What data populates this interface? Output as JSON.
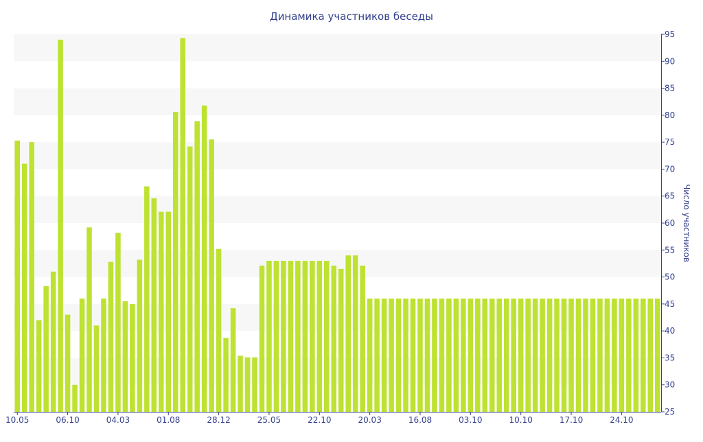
{
  "chart_data": {
    "type": "bar",
    "title": "Динамика участников беседы",
    "xlabel": "",
    "ylabel": "Число участников",
    "ylim": [
      25,
      95
    ],
    "yticks": [
      25,
      30,
      35,
      40,
      45,
      50,
      55,
      60,
      65,
      70,
      75,
      80,
      85,
      90,
      95
    ],
    "y_axis_side": "right",
    "grid": "alternating horizontal bands",
    "legend": "none",
    "bar_color": "#bde231",
    "axis_color": "#33408c",
    "x_tick_labels": [
      {
        "label": "10.05",
        "index": 0
      },
      {
        "label": "06.10",
        "index": 7
      },
      {
        "label": "04.03",
        "index": 14
      },
      {
        "label": "01.08",
        "index": 21
      },
      {
        "label": "28.12",
        "index": 28
      },
      {
        "label": "25.05",
        "index": 35
      },
      {
        "label": "22.10",
        "index": 42
      },
      {
        "label": "20.03",
        "index": 49
      },
      {
        "label": "16.08",
        "index": 56
      },
      {
        "label": "03.10",
        "index": 63
      },
      {
        "label": "10.10",
        "index": 70
      },
      {
        "label": "17.10",
        "index": 77
      },
      {
        "label": "24.10",
        "index": 84
      }
    ],
    "values": [
      75.3,
      71,
      75,
      42,
      48.3,
      51,
      94,
      43,
      30,
      46,
      59.2,
      41,
      46,
      52.8,
      58.2,
      45.5,
      45,
      53.2,
      66.8,
      64.6,
      62.1,
      62.1,
      80.6,
      94.3,
      74.2,
      78.9,
      81.8,
      75.5,
      55.2,
      38.7,
      44.2,
      35.4,
      35.1,
      35.1,
      52.1,
      53,
      53,
      53,
      53,
      53,
      53,
      53,
      53,
      53,
      52.1,
      51.5,
      54,
      54,
      52.1,
      46,
      46,
      46,
      46,
      46,
      46,
      46,
      46,
      46,
      46,
      46,
      46,
      46,
      46,
      46,
      46,
      46,
      46,
      46,
      46,
      46,
      46,
      46,
      46,
      46,
      46,
      46,
      46,
      46,
      46,
      46,
      46,
      46,
      46,
      46,
      46,
      46,
      46,
      46,
      46,
      46
    ]
  }
}
